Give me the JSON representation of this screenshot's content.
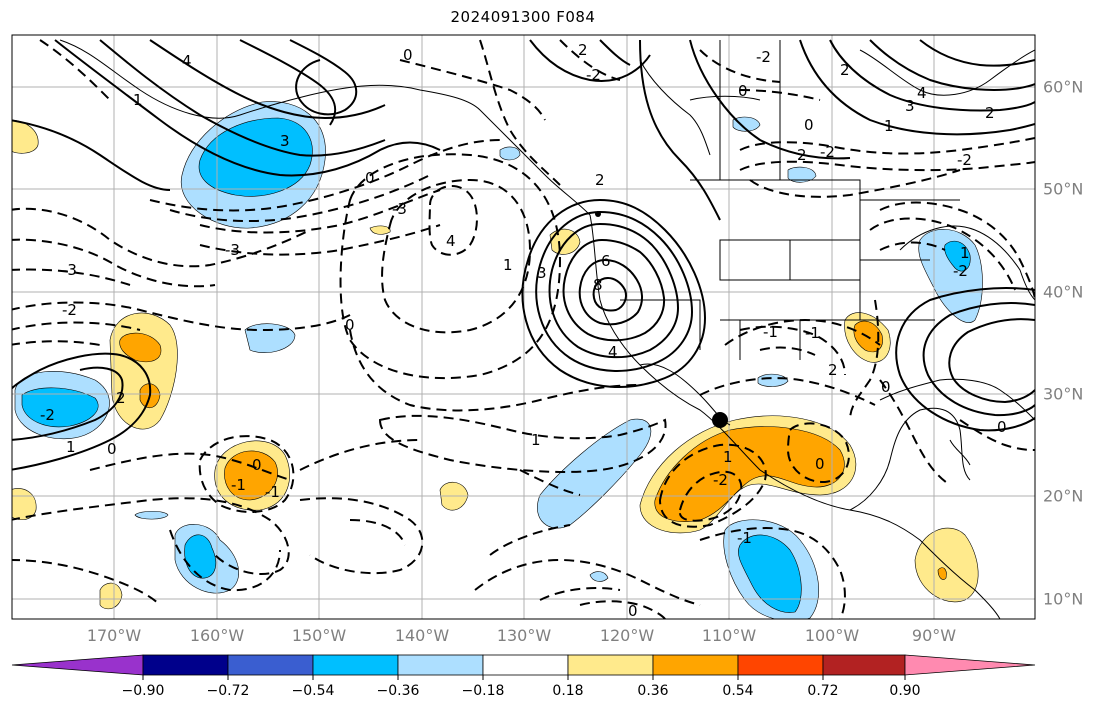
{
  "title": "2024091300 F084",
  "colorbar": {
    "tick_labels": [
      "−0.90",
      "−0.72",
      "−0.54",
      "−0.36",
      "−0.18",
      "0.18",
      "0.36",
      "0.54",
      "0.72",
      "0.90"
    ],
    "colors": [
      "#9932CC",
      "#00008B",
      "#3A5ED0",
      "#00BFFF",
      "#ADDFFF",
      "#FFFFFF",
      "#FFEA8C",
      "#FFA500",
      "#FF4500",
      "#B22222",
      "#FF8AB0"
    ]
  },
  "map": {
    "lon_labels": [
      "170°W",
      "160°W",
      "150°W",
      "140°W",
      "130°W",
      "120°W",
      "110°W",
      "100°W",
      "90°W"
    ],
    "lat_labels": [
      "60°N",
      "50°N",
      "40°N",
      "30°N",
      "20°N",
      "10°N"
    ],
    "contour_labels": [
      "4",
      "1",
      "3",
      "0",
      "-3",
      "-3",
      "4",
      "-3",
      "-2",
      "0",
      "-2",
      "2",
      "1",
      "0",
      "0",
      "-1",
      "1",
      "-1",
      "-2",
      "6",
      "8",
      "4",
      "3",
      "1",
      "-1",
      "2",
      "0",
      "-2",
      "2",
      "-1",
      "0",
      "0",
      "2",
      "0",
      "-2",
      "-2",
      "0",
      "3",
      "4",
      "1",
      "2",
      "-2",
      "-2",
      "1",
      "2",
      "0",
      "0",
      "-1",
      "1",
      "2"
    ],
    "marker": "black dot"
  }
}
